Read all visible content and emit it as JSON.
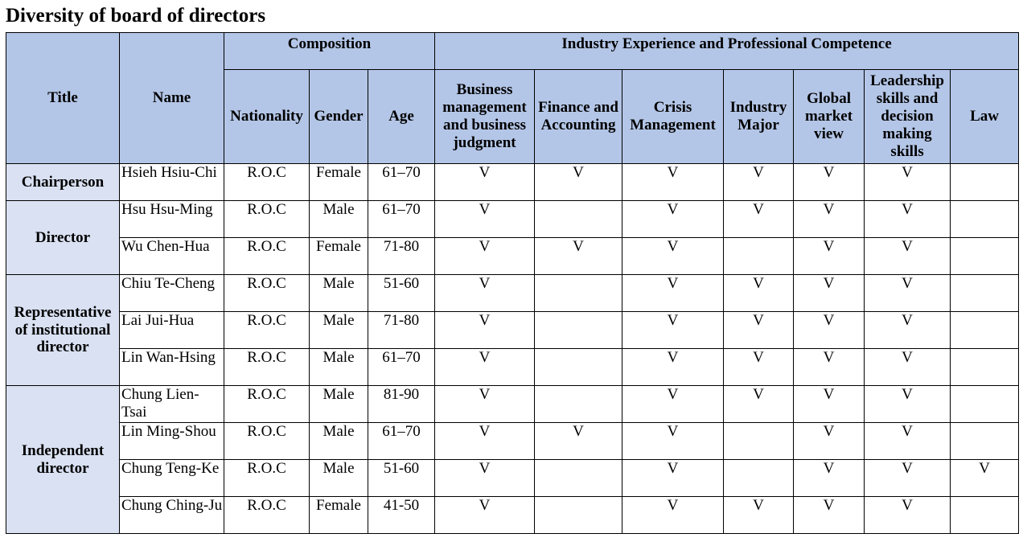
{
  "page_title": "Diversity of board of directors",
  "header": {
    "title": "Title",
    "name": "Name",
    "composition": "Composition",
    "industry_group": "Industry Experience and Professional Competence",
    "nationality": "Nationality",
    "gender": "Gender",
    "age": "Age",
    "business": "Business management and business judgment",
    "finance": "Finance and Accounting",
    "crisis": "Crisis Management",
    "industry_major": "Industry Major",
    "global": "Global market view",
    "leadership": "Leadership skills and decision making skills",
    "law": "Law"
  },
  "groups": [
    {
      "title": "Chairperson"
    },
    {
      "title": "Director"
    },
    {
      "title": "Representative of institutional director"
    },
    {
      "title": "Independent director"
    }
  ],
  "rows": [
    {
      "name": "Hsieh Hsiu-Chi",
      "nationality": "R.O.C",
      "gender": "Female",
      "age": "61–70",
      "business": "V",
      "finance": "V",
      "crisis": "V",
      "industry": "V",
      "global": "V",
      "leadership": "V",
      "law": ""
    },
    {
      "name": "Hsu Hsu-Ming",
      "nationality": "R.O.C",
      "gender": "Male",
      "age": "61–70",
      "business": "V",
      "finance": "",
      "crisis": "V",
      "industry": "V",
      "global": "V",
      "leadership": "V",
      "law": ""
    },
    {
      "name": "Wu Chen-Hua",
      "nationality": "R.O.C",
      "gender": "Female",
      "age": "71-80",
      "business": "V",
      "finance": "V",
      "crisis": "V",
      "industry": "",
      "global": "V",
      "leadership": "V",
      "law": ""
    },
    {
      "name": "Chiu Te-Cheng",
      "nationality": "R.O.C",
      "gender": "Male",
      "age": "51-60",
      "business": "V",
      "finance": "",
      "crisis": "V",
      "industry": "V",
      "global": "V",
      "leadership": "V",
      "law": ""
    },
    {
      "name": "Lai Jui-Hua",
      "nationality": "R.O.C",
      "gender": "Male",
      "age": "71-80",
      "business": "V",
      "finance": "",
      "crisis": "V",
      "industry": "V",
      "global": "V",
      "leadership": "V",
      "law": ""
    },
    {
      "name": "Lin Wan-Hsing",
      "nationality": "R.O.C",
      "gender": "Male",
      "age": "61–70",
      "business": "V",
      "finance": "",
      "crisis": "V",
      "industry": "V",
      "global": "V",
      "leadership": "V",
      "law": ""
    },
    {
      "name": "Chung Lien-Tsai",
      "nationality": "R.O.C",
      "gender": "Male",
      "age": "81-90",
      "business": "V",
      "finance": "",
      "crisis": "V",
      "industry": "V",
      "global": "V",
      "leadership": "V",
      "law": ""
    },
    {
      "name": "Lin Ming-Shou",
      "nationality": "R.O.C",
      "gender": "Male",
      "age": "61–70",
      "business": "V",
      "finance": "V",
      "crisis": "V",
      "industry": "",
      "global": "V",
      "leadership": "V",
      "law": ""
    },
    {
      "name": "Chung Teng-Ke",
      "nationality": "R.O.C",
      "gender": "Male",
      "age": "51-60",
      "business": "V",
      "finance": "",
      "crisis": "V",
      "industry": "",
      "global": "V",
      "leadership": "V",
      "law": "V"
    },
    {
      "name": "Chung Ching-Ju",
      "nationality": "R.O.C",
      "gender": "Female",
      "age": "41-50",
      "business": "V",
      "finance": "",
      "crisis": "V",
      "industry": "V",
      "global": "V",
      "leadership": "V",
      "law": ""
    }
  ]
}
